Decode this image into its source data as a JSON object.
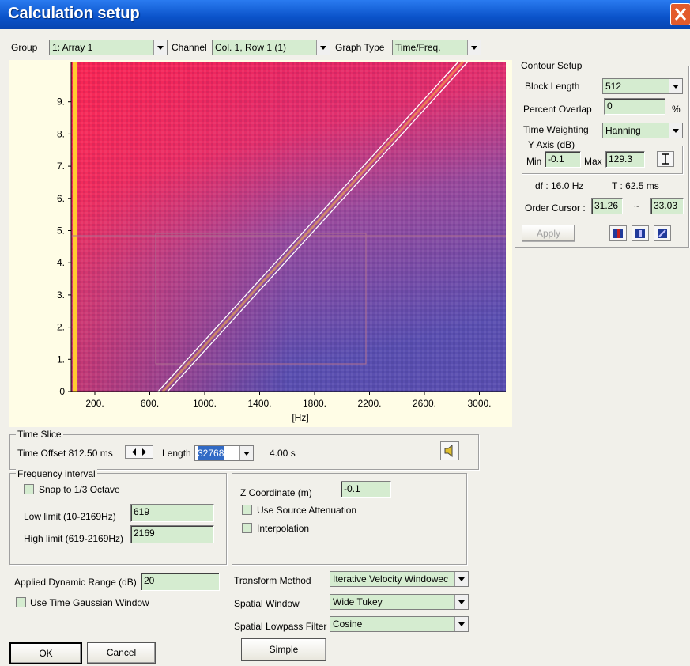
{
  "title": "Calculation setup",
  "toolbar": {
    "group_label": "Group",
    "group_value": "1: Array 1",
    "channel_label": "Channel",
    "channel_value": "Col. 1, Row 1 (1)",
    "graph_type_label": "Graph Type",
    "graph_type_value": "Time/Freq."
  },
  "plot": {
    "y_ticks": [
      "0",
      "1.",
      "2.",
      "3.",
      "4.",
      "5.",
      "6.",
      "7.",
      "8.",
      "9."
    ],
    "x_ticks": [
      "200.",
      "600.",
      "1000.",
      "1400.",
      "1800.",
      "2200.",
      "2600.",
      "3000."
    ],
    "x_label": "[Hz]"
  },
  "contour_setup": {
    "title": "Contour Setup",
    "block_length_label": "Block Length",
    "block_length": "512",
    "percent_overlap_label": "Percent Overlap",
    "percent_overlap": "0",
    "percent_unit": "%",
    "time_weighting_label": "Time Weighting",
    "time_weighting": "Hanning",
    "y_axis_title": "Y Axis (dB)",
    "min_label": "Min",
    "min": "-0.1",
    "max_label": "Max",
    "max": "129.3",
    "df": "df : 16.0 Hz",
    "t": "T : 62.5 ms",
    "order_cursor_label": "Order Cursor :",
    "order_cursor_from": "31.26",
    "tilde": "~",
    "order_cursor_to": "33.03",
    "apply": "Apply"
  },
  "time_slice": {
    "title": "Time Slice",
    "time_offset": "Time Offset 812.50 ms",
    "length_label": "Length",
    "length": "32768",
    "duration": "4.00 s"
  },
  "frequency_interval": {
    "title": "Frequency interval",
    "snap": "Snap to 1/3 Octave",
    "low_label": "Low limit (10-2169Hz)",
    "low": "619",
    "high_label": "High limit (619-2169Hz)",
    "high": "2169"
  },
  "z_group": {
    "label": "Z Coordinate (m)",
    "value": "-0.1",
    "use_source_attenuation": "Use Source Attenuation",
    "interpolation": "Interpolation"
  },
  "bottom": {
    "dynamic_range_label": "Applied Dynamic Range (dB)",
    "dynamic_range": "20",
    "use_time_gaussian": "Use Time Gaussian Window",
    "transform_label": "Transform Method",
    "transform": "Iterative Velocity Windowec",
    "spatial_window_label": "Spatial Window",
    "spatial_window": "Wide Tukey",
    "lowpass_label": "Spatial Lowpass Filter",
    "lowpass": "Cosine",
    "ok": "OK",
    "cancel": "Cancel",
    "simple": "Simple"
  }
}
